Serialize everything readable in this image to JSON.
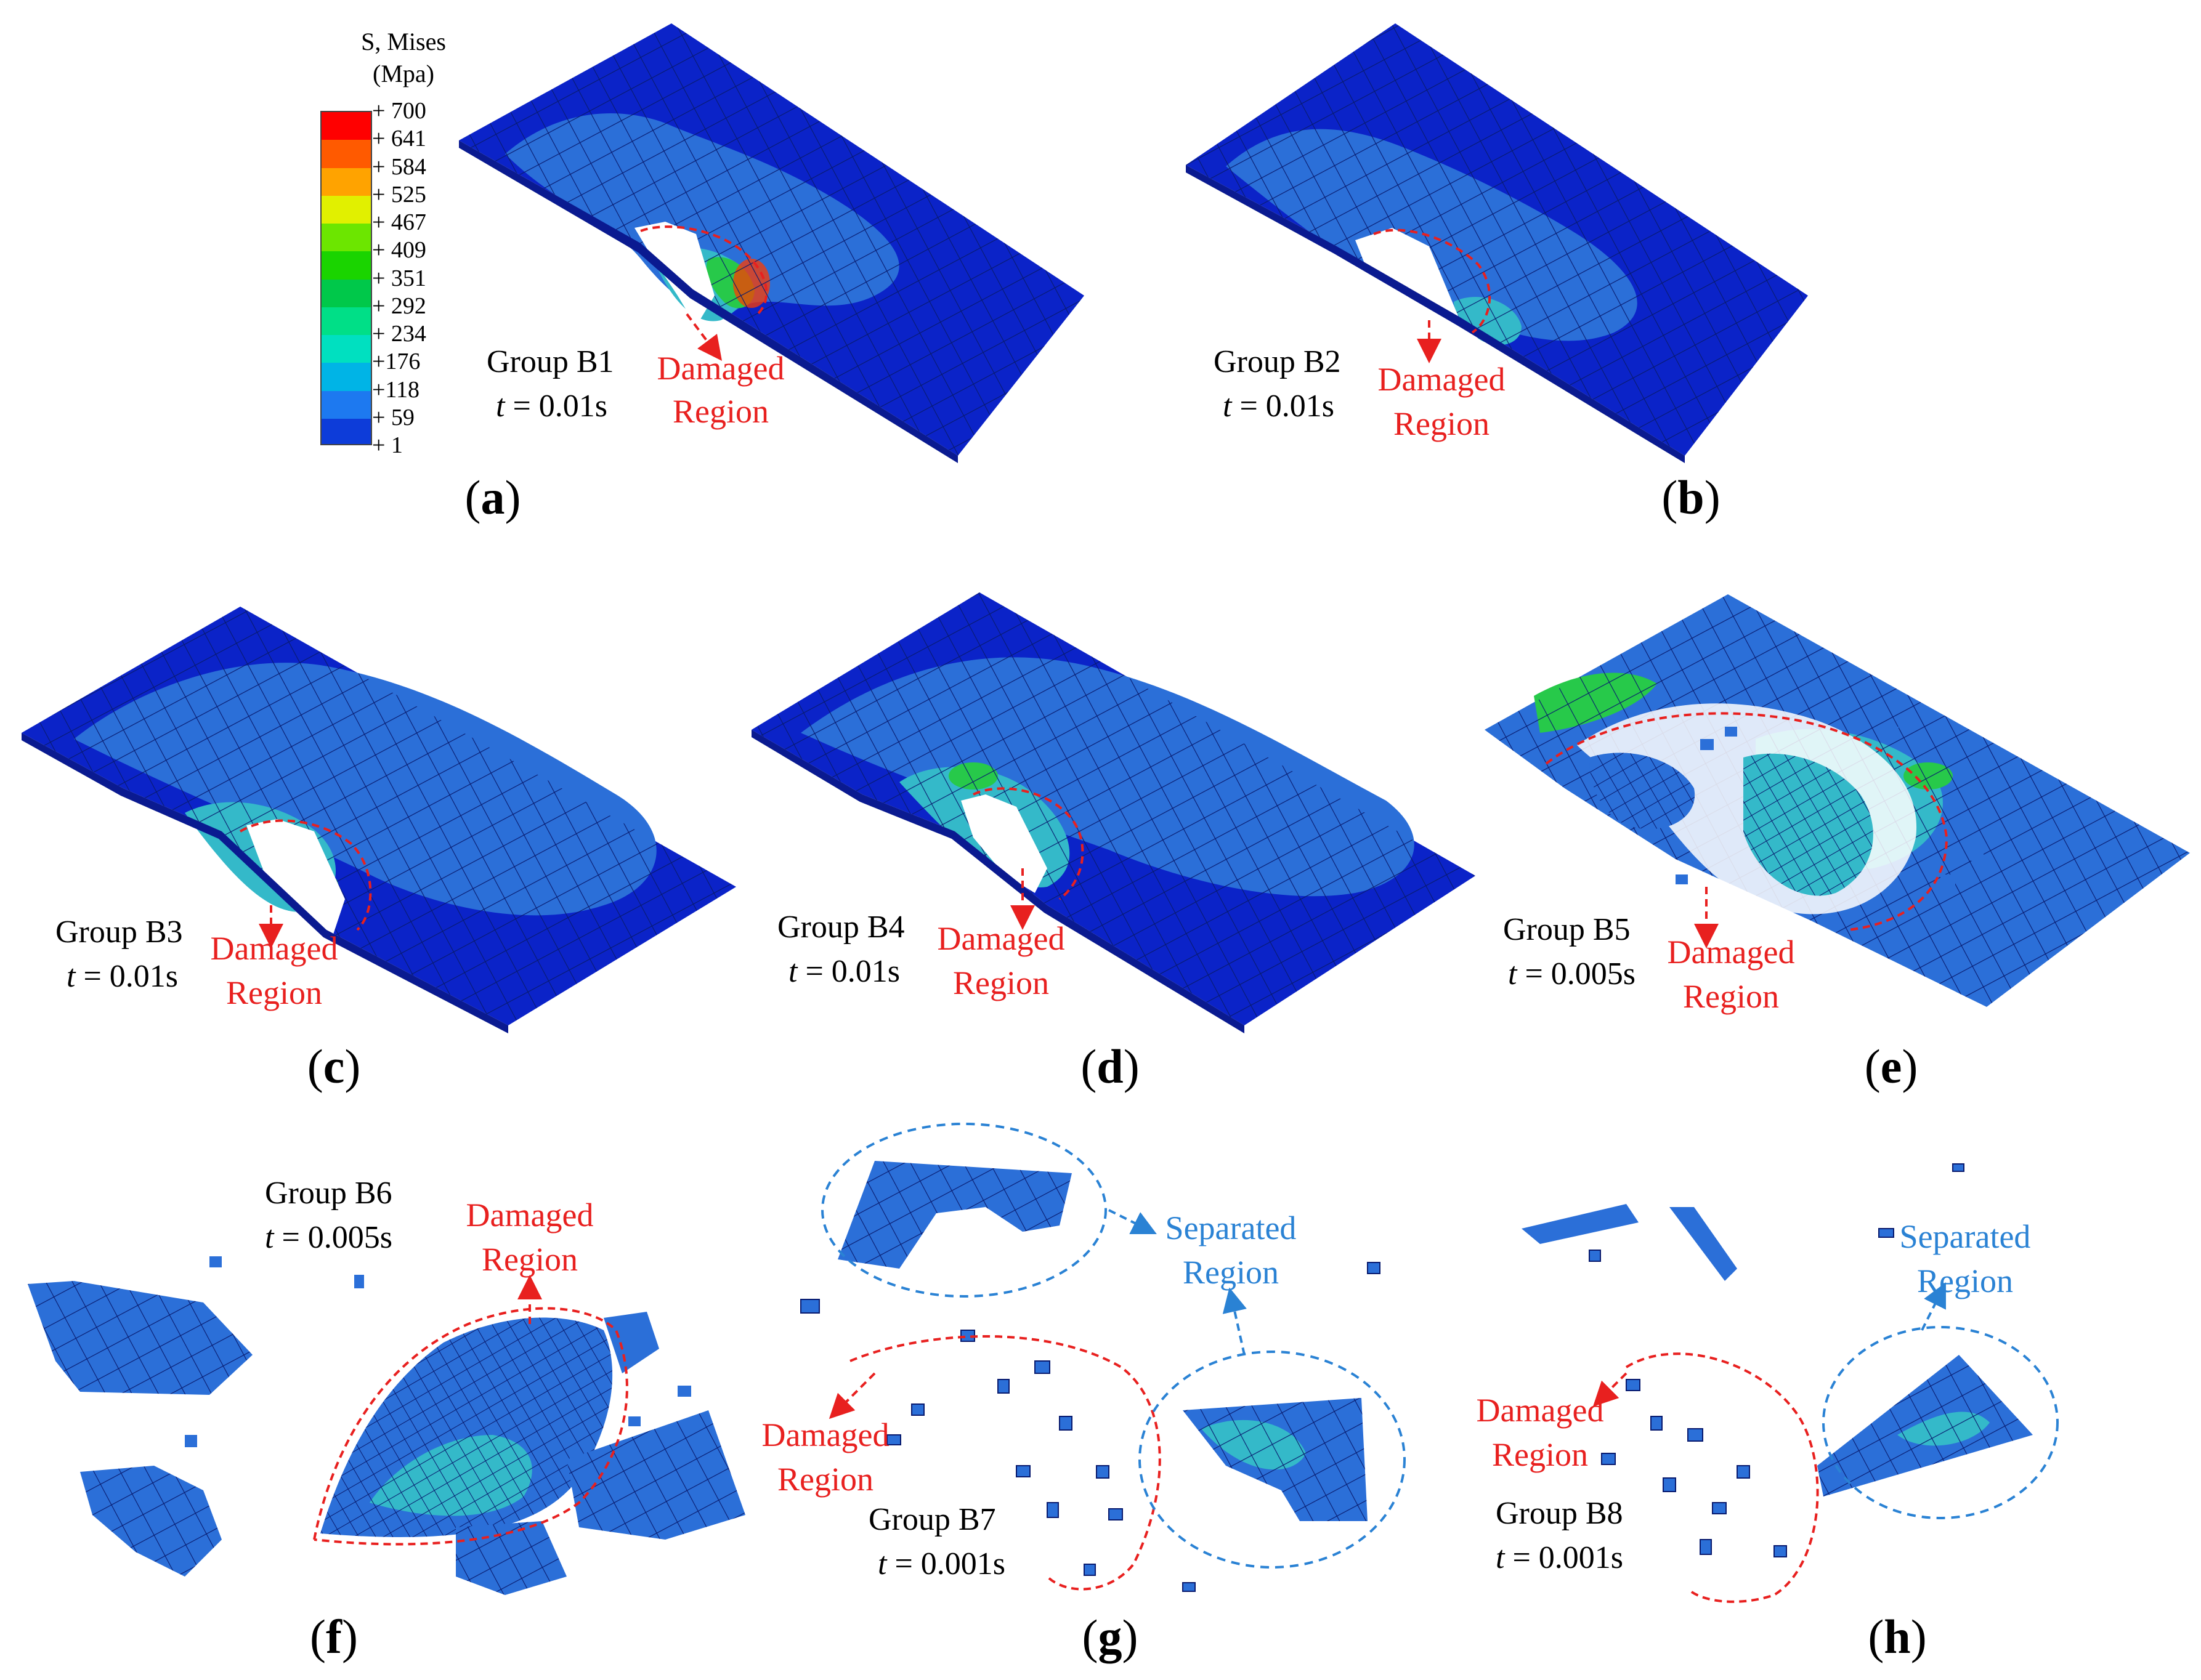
{
  "legend": {
    "title_line1": "S, Mises",
    "title_line2": "(Mpa)",
    "ticks": [
      "+ 700",
      "+ 641",
      "+ 584",
      "+ 525",
      "+ 467",
      "+ 409",
      "+ 351",
      "+ 292",
      "+ 234",
      "+176",
      "+118",
      "+ 59",
      "+ 1"
    ],
    "colors": [
      "#ff0000",
      "#ff5a00",
      "#ffa300",
      "#e1f000",
      "#6ce600",
      "#1ad400",
      "#00c84a",
      "#00df87",
      "#00e0c0",
      "#00b4e6",
      "#1d79f0",
      "#0d3cd9",
      "#0014c8"
    ]
  },
  "palette": {
    "deep_blue": "#0b23c8",
    "mid_blue": "#2b6fd8",
    "cyan": "#34b9c9",
    "green": "#27c94a",
    "red_annotation": "#e8201f",
    "blue_annotation": "#2a82d4"
  },
  "panels": [
    {
      "letter": "a",
      "group": "Group B1",
      "time_var": "t",
      "time_value": "= 0.01s",
      "region": [
        "Damaged",
        "Region"
      ]
    },
    {
      "letter": "b",
      "group": "Group B2",
      "time_var": "t",
      "time_value": "= 0.01s",
      "region": [
        "Damaged",
        "Region"
      ]
    },
    {
      "letter": "c",
      "group": "Group B3",
      "time_var": "t",
      "time_value": "= 0.01s",
      "region": [
        "Damaged",
        "Region"
      ]
    },
    {
      "letter": "d",
      "group": "Group B4",
      "time_var": "t",
      "time_value": "= 0.01s",
      "region": [
        "Damaged",
        "Region"
      ]
    },
    {
      "letter": "e",
      "group": "Group B5",
      "time_var": "t",
      "time_value": "= 0.005s",
      "region": [
        "Damaged",
        "Region"
      ]
    },
    {
      "letter": "f",
      "group": "Group B6",
      "time_var": "t",
      "time_value": "= 0.005s",
      "region": [
        "Damaged",
        "Region"
      ]
    },
    {
      "letter": "g",
      "group": "Group B7",
      "time_var": "t",
      "time_value": "= 0.001s",
      "region": [
        "Damaged",
        "Region"
      ],
      "separated": [
        "Separated",
        "Region"
      ]
    },
    {
      "letter": "h",
      "group": "Group B8",
      "time_var": "t",
      "time_value": "= 0.001s",
      "region": [
        "Damaged",
        "Region"
      ],
      "separated": [
        "Separated",
        "Region"
      ]
    }
  ]
}
